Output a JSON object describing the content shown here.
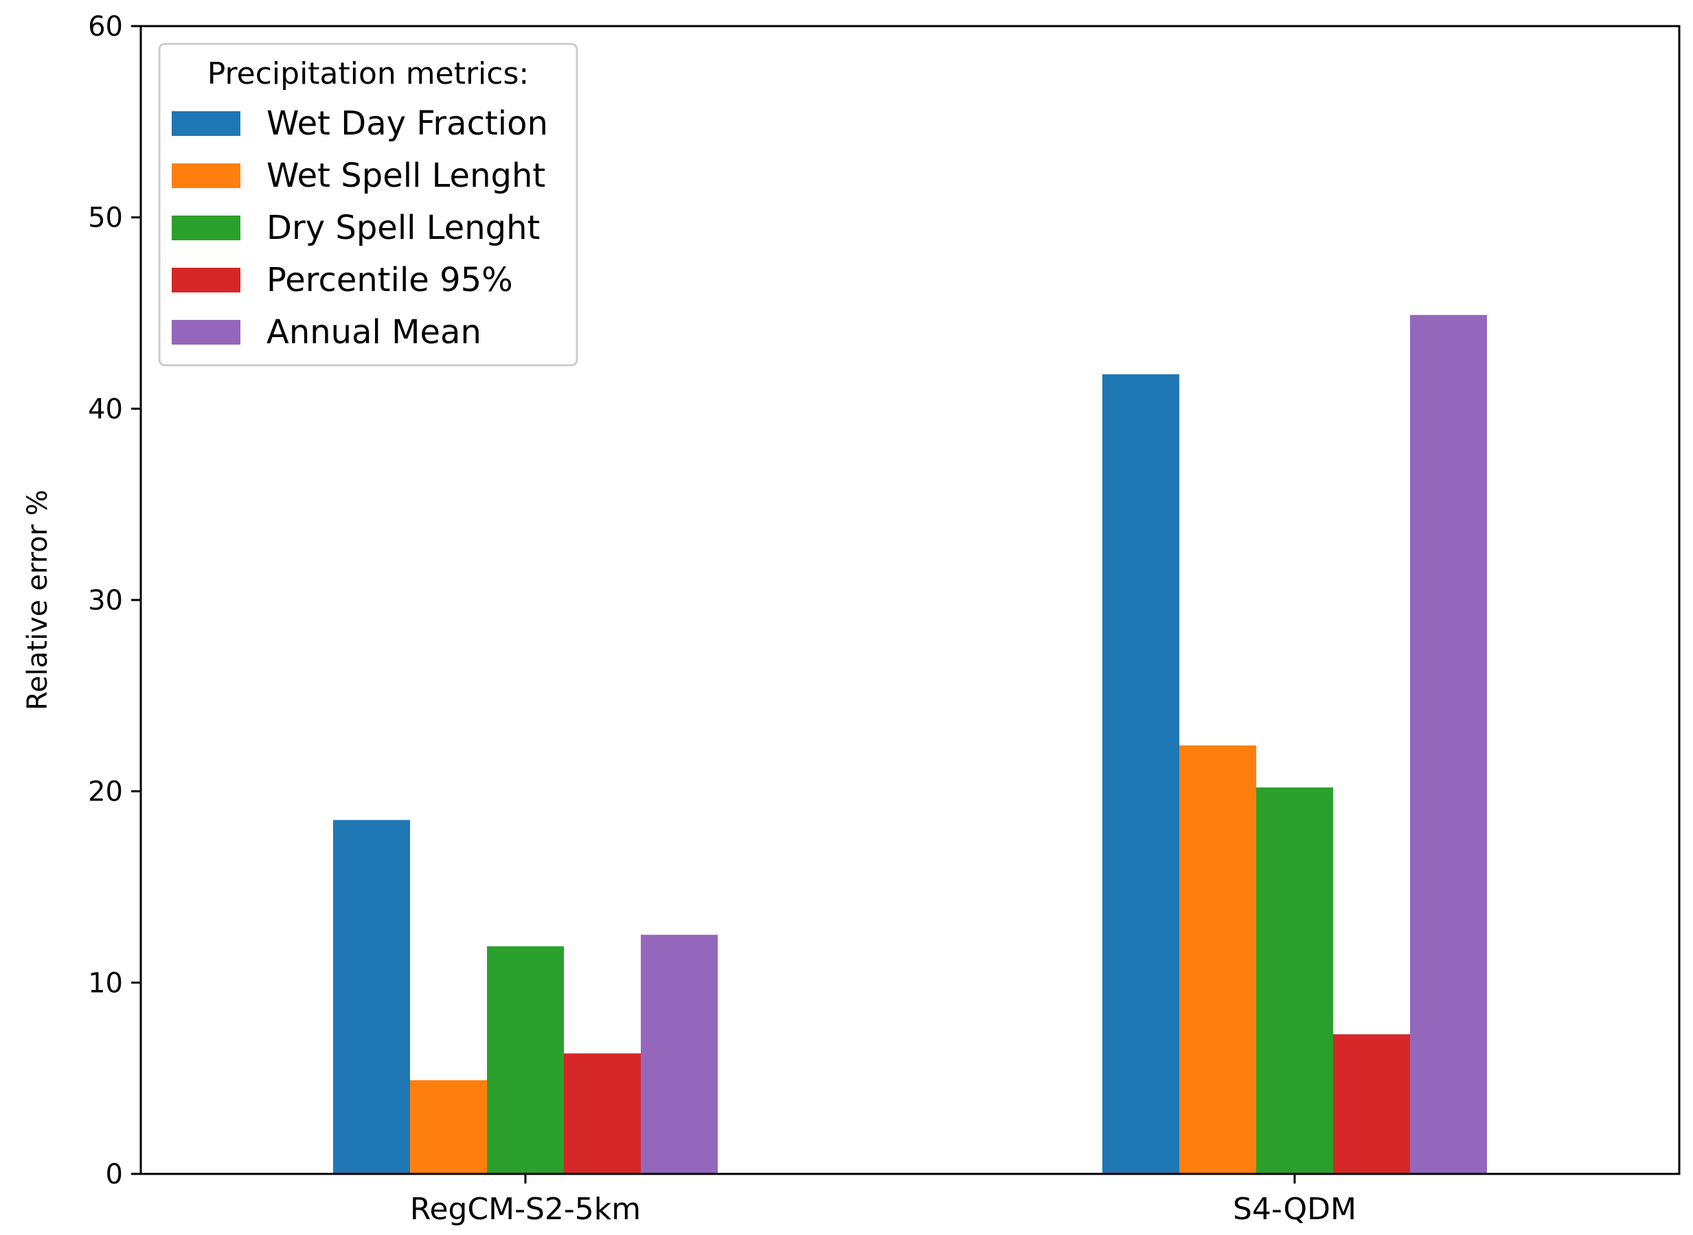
{
  "chart_data": {
    "type": "bar",
    "title": "",
    "xlabel": "",
    "ylabel": "Relative error %",
    "ylim": [
      0,
      60
    ],
    "yticks": [
      0,
      10,
      20,
      30,
      40,
      50,
      60
    ],
    "ytick_labels": [
      "0",
      "10",
      "20",
      "30",
      "40",
      "50",
      "60"
    ],
    "grid": false,
    "categories": [
      "RegCM-S2-5km",
      "S4-QDM"
    ],
    "legend": {
      "title": "Precipitation metrics:",
      "location": "top-left"
    },
    "series": [
      {
        "name": "Wet Day Fraction",
        "color": "#1f77b4",
        "values": [
          18.5,
          41.8
        ]
      },
      {
        "name": "Wet Spell Lenght",
        "color": "#ff7f0e",
        "values": [
          4.9,
          22.4
        ]
      },
      {
        "name": "Dry Spell Lenght",
        "color": "#2ca02c",
        "values": [
          11.9,
          20.2
        ]
      },
      {
        "name": "Percentile 95%",
        "color": "#d62728",
        "values": [
          6.3,
          7.3
        ]
      },
      {
        "name": "Annual Mean",
        "color": "#9467bd",
        "values": [
          12.5,
          44.9
        ]
      }
    ]
  }
}
